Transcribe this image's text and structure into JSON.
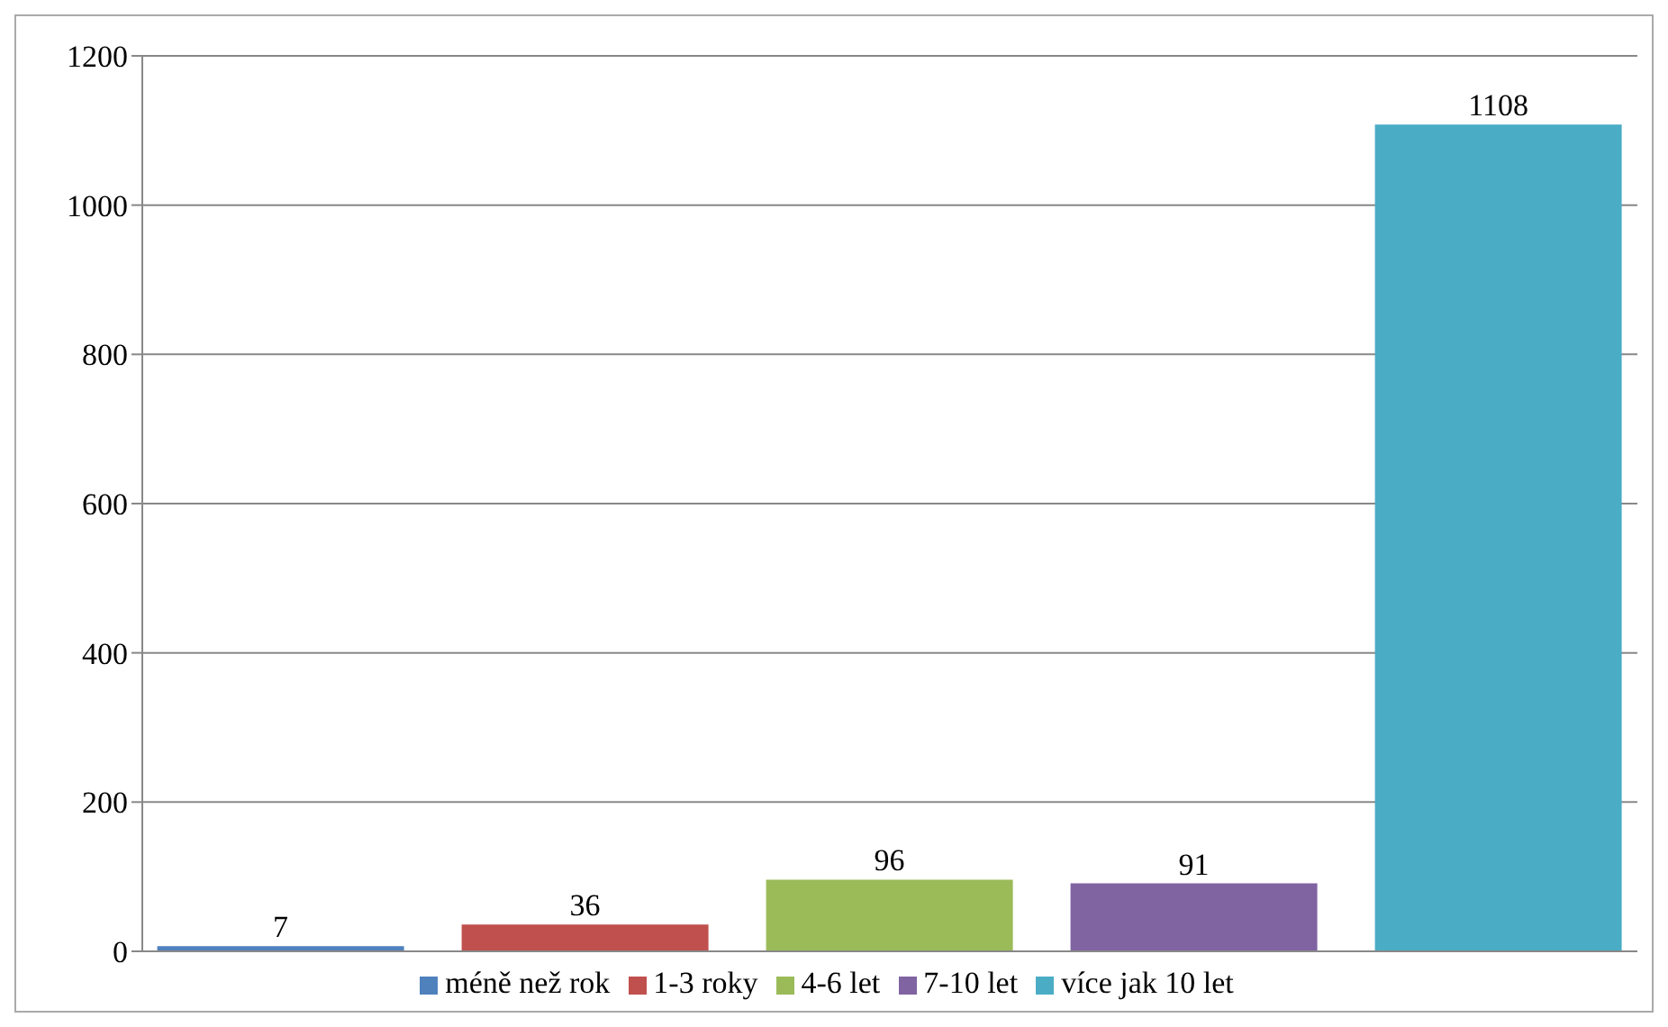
{
  "chart_data": {
    "type": "bar",
    "categories": [
      null
    ],
    "series": [
      {
        "name": "méně než rok",
        "color": "#4f81bd",
        "values": [
          7
        ]
      },
      {
        "name": "1-3 roky",
        "color": "#c0504d",
        "values": [
          36
        ]
      },
      {
        "name": "4-6 let",
        "color": "#9bbb59",
        "values": [
          96
        ]
      },
      {
        "name": "7-10 let",
        "color": "#8064a2",
        "values": [
          91
        ]
      },
      {
        "name": "více jak 10 let",
        "color": "#4bacc6",
        "values": [
          1108
        ]
      }
    ],
    "ylim": [
      0,
      1200
    ],
    "yticks": [
      0,
      200,
      400,
      600,
      800,
      1000,
      1200
    ],
    "grid": "y",
    "legend": "bottom",
    "data_labels": true
  }
}
